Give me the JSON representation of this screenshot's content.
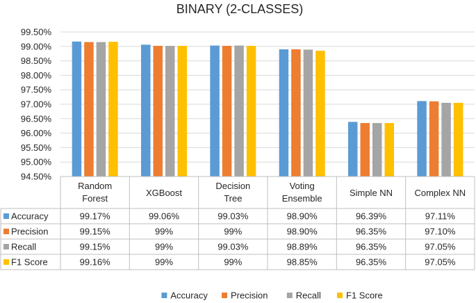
{
  "chart_data": {
    "type": "bar",
    "title": "BINARY (2-CLASSES)",
    "categories": [
      [
        "Random",
        "Forest"
      ],
      [
        "XGBoost"
      ],
      [
        "Decision",
        "Tree"
      ],
      [
        "Voting",
        "Ensemble"
      ],
      [
        "Simple NN"
      ],
      [
        "Complex NN"
      ]
    ],
    "series": [
      {
        "name": "Accuracy",
        "color": "#5b9bd5",
        "values": [
          99.17,
          99.06,
          99.03,
          98.9,
          96.39,
          97.11
        ],
        "labels": [
          "99.17%",
          "99.06%",
          "99.03%",
          "98.90%",
          "96.39%",
          "97.11%"
        ]
      },
      {
        "name": "Precision",
        "color": "#ed7d31",
        "values": [
          99.15,
          99.02,
          99.02,
          98.9,
          96.35,
          97.1
        ],
        "labels": [
          "99.15%",
          "99%",
          "99%",
          "98.90%",
          "96.35%",
          "97.10%"
        ]
      },
      {
        "name": "Recall",
        "color": "#a5a5a5",
        "values": [
          99.15,
          99.02,
          99.03,
          98.89,
          96.35,
          97.05
        ],
        "labels": [
          "99.15%",
          "99%",
          "99.03%",
          "98.89%",
          "96.35%",
          "97.05%"
        ]
      },
      {
        "name": "F1 Score",
        "color": "#ffc000",
        "values": [
          99.16,
          99.02,
          99.02,
          98.85,
          96.35,
          97.05
        ],
        "labels": [
          "99.16%",
          "99%",
          "99%",
          "98.85%",
          "96.35%",
          "97.05%"
        ]
      }
    ],
    "ylim": [
      94.5,
      99.5
    ],
    "yticks": [
      94.5,
      95.0,
      95.5,
      96.0,
      96.5,
      97.0,
      97.5,
      98.0,
      98.5,
      99.0,
      99.5
    ],
    "ytick_labels": [
      "94.50%",
      "95.00%",
      "95.50%",
      "96.00%",
      "96.50%",
      "97.00%",
      "97.50%",
      "98.00%",
      "98.50%",
      "99.00%",
      "99.50%"
    ],
    "grid": true,
    "legend": "bottom",
    "data_table": true
  }
}
